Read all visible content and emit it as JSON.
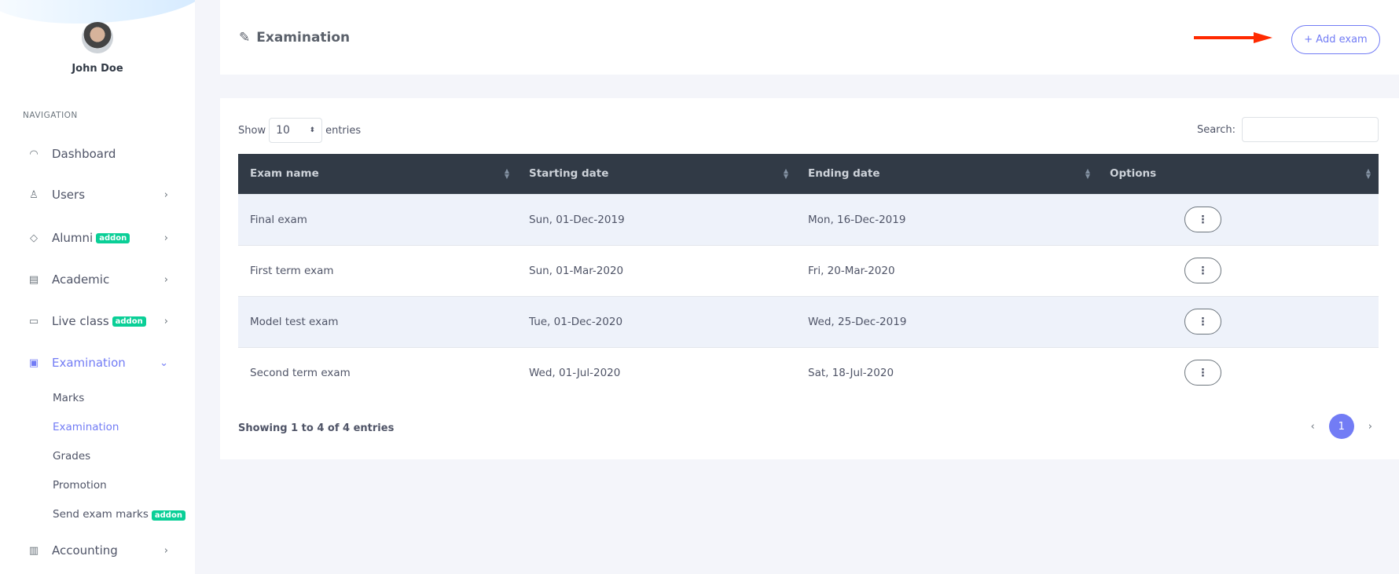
{
  "user": {
    "name": "John Doe"
  },
  "sidebar": {
    "heading": "NAVIGATION",
    "items": [
      {
        "label": "Dashboard",
        "icon": "gauge-icon",
        "badge": null,
        "chevron": false
      },
      {
        "label": "Users",
        "icon": "user-icon",
        "badge": null,
        "chevron": true
      },
      {
        "label": "Alumni",
        "icon": "graduation-cap-icon",
        "badge": "addon",
        "chevron": true
      },
      {
        "label": "Academic",
        "icon": "store-icon",
        "badge": null,
        "chevron": true
      },
      {
        "label": "Live class",
        "icon": "video-icon",
        "badge": "addon",
        "chevron": true
      },
      {
        "label": "Examination",
        "icon": "clipboard-icon",
        "badge": null,
        "chevron": true,
        "active": true
      },
      {
        "label": "Accounting",
        "icon": "briefcase-icon",
        "badge": null,
        "chevron": true
      }
    ],
    "subitems": [
      {
        "label": "Marks"
      },
      {
        "label": "Examination",
        "active": true
      },
      {
        "label": "Grades"
      },
      {
        "label": "Promotion"
      },
      {
        "label": "Send exam marks",
        "badge": "addon"
      }
    ]
  },
  "header": {
    "title": "Examination",
    "add_label": "+ Add exam"
  },
  "table": {
    "show_label": "Show",
    "entries_label": "entries",
    "page_size": "10",
    "search_label": "Search:",
    "search_value": "",
    "columns": [
      "Exam name",
      "Starting date",
      "Ending date",
      "Options"
    ],
    "rows": [
      [
        "Final exam",
        "Sun, 01-Dec-2019",
        "Mon, 16-Dec-2019"
      ],
      [
        "First term exam",
        "Sun, 01-Mar-2020",
        "Fri, 20-Mar-2020"
      ],
      [
        "Model test exam",
        "Tue, 01-Dec-2020",
        "Wed, 25-Dec-2019"
      ],
      [
        "Second term exam",
        "Wed, 01-Jul-2020",
        "Sat, 18-Jul-2020"
      ]
    ],
    "info": "Showing 1 to 4 of 4 entries",
    "prev": "‹",
    "current_page": "1",
    "next": "›"
  },
  "colors": {
    "accent": "#727cf5",
    "badge": "#0acf97",
    "table_header": "#313a46",
    "arrow": "#ff2a00"
  }
}
